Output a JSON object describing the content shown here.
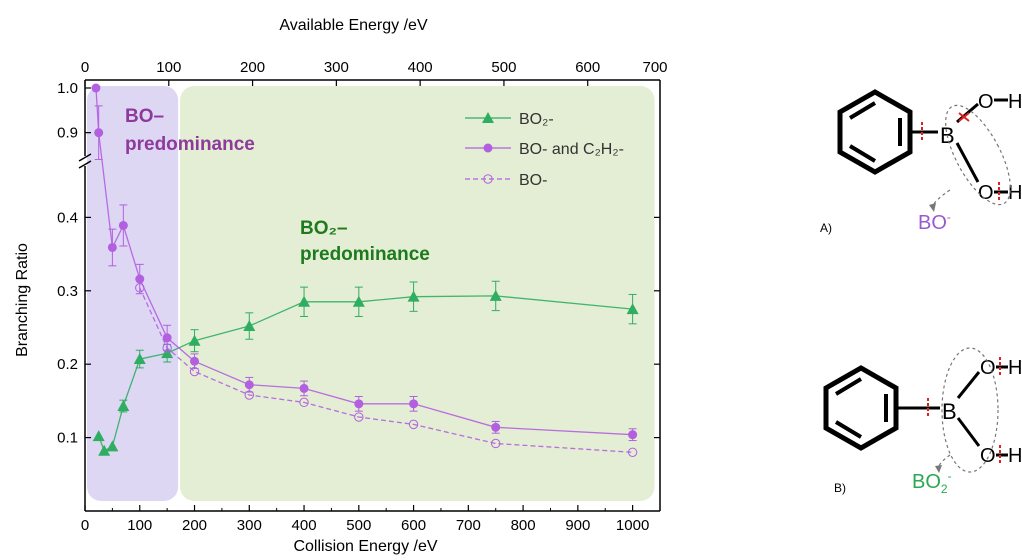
{
  "chart_data": {
    "type": "line",
    "xlabel": "Collision Energy /eV",
    "x2label": "Available Energy /eV",
    "ylabel": "Branching Ratio",
    "xlim": [
      0,
      1050
    ],
    "x_ticks": [
      0,
      100,
      200,
      300,
      400,
      500,
      600,
      700,
      800,
      900,
      1000
    ],
    "x2_ticks": [
      0,
      100,
      200,
      300,
      400,
      500,
      600,
      700
    ],
    "x2_positions_collision_energy": [
      0,
      153,
      306,
      459,
      612,
      765,
      918,
      1071
    ],
    "y_lower_lim": [
      0,
      0.47
    ],
    "y_upper_lim": [
      0.85,
      1.0
    ],
    "y_break": true,
    "y_ticks_lower": [
      0.1,
      0.2,
      0.3,
      0.4
    ],
    "y_ticks_upper": [
      0.9,
      1.0
    ],
    "grid": false,
    "legend_position": "top-right",
    "regions": [
      {
        "label_line1": "BO–",
        "label_line2": "predominance",
        "x_range": [
          0,
          170
        ],
        "color": "#ded7f4",
        "text_color": "#8e3a9c"
      },
      {
        "label_line1": "BO₂–",
        "label_line2": "predominance",
        "x_range": [
          170,
          1040
        ],
        "color": "#e4eed4",
        "text_color": "#1e7a1e"
      }
    ],
    "series": [
      {
        "name": "BO₂-",
        "marker": "triangle",
        "color": "#2fae62",
        "linestyle": "solid",
        "points": [
          {
            "x": 25,
            "y": 0.102,
            "err": 0
          },
          {
            "x": 35,
            "y": 0.082,
            "err": 0
          },
          {
            "x": 50,
            "y": 0.088,
            "err": 0
          },
          {
            "x": 70,
            "y": 0.143,
            "err": 0.008
          },
          {
            "x": 100,
            "y": 0.207,
            "err": 0.012
          },
          {
            "x": 150,
            "y": 0.215,
            "err": 0.012
          },
          {
            "x": 200,
            "y": 0.232,
            "err": 0.015
          },
          {
            "x": 300,
            "y": 0.252,
            "err": 0.018
          },
          {
            "x": 400,
            "y": 0.285,
            "err": 0.02
          },
          {
            "x": 500,
            "y": 0.285,
            "err": 0.02
          },
          {
            "x": 600,
            "y": 0.292,
            "err": 0.02
          },
          {
            "x": 750,
            "y": 0.293,
            "err": 0.02
          },
          {
            "x": 1000,
            "y": 0.275,
            "err": 0.02
          }
        ]
      },
      {
        "name": "BO- and C₂H₂-",
        "marker": "circle",
        "color": "#b25fe0",
        "linestyle": "solid",
        "points": [
          {
            "x": 20,
            "y": 1.0,
            "err": 0,
            "segment": "upper"
          },
          {
            "x": 25,
            "y": 0.9,
            "err": 0.06,
            "segment": "upper"
          },
          {
            "x": 50,
            "y": 0.359,
            "err": 0.025
          },
          {
            "x": 70,
            "y": 0.389,
            "err": 0.028
          },
          {
            "x": 100,
            "y": 0.316,
            "err": 0.02
          },
          {
            "x": 150,
            "y": 0.236,
            "err": 0.017
          },
          {
            "x": 200,
            "y": 0.204,
            "err": 0.01
          },
          {
            "x": 300,
            "y": 0.172,
            "err": 0.01
          },
          {
            "x": 400,
            "y": 0.167,
            "err": 0.01
          },
          {
            "x": 500,
            "y": 0.146,
            "err": 0.01
          },
          {
            "x": 600,
            "y": 0.146,
            "err": 0.01
          },
          {
            "x": 750,
            "y": 0.114,
            "err": 0.008
          },
          {
            "x": 1000,
            "y": 0.104,
            "err": 0.008
          }
        ]
      },
      {
        "name": "BO-",
        "marker": "open-circle",
        "color": "#b25fe0",
        "linestyle": "dashed",
        "points": [
          {
            "x": 100,
            "y": 0.304,
            "err": 0
          },
          {
            "x": 150,
            "y": 0.222,
            "err": 0
          },
          {
            "x": 200,
            "y": 0.19,
            "err": 0
          },
          {
            "x": 300,
            "y": 0.158,
            "err": 0
          },
          {
            "x": 400,
            "y": 0.148,
            "err": 0
          },
          {
            "x": 500,
            "y": 0.128,
            "err": 0
          },
          {
            "x": 600,
            "y": 0.118,
            "err": 0
          },
          {
            "x": 750,
            "y": 0.092,
            "err": 0
          },
          {
            "x": 1000,
            "y": 0.08,
            "err": 0
          }
        ]
      }
    ]
  },
  "schemes": [
    {
      "panel_label": "A)",
      "product_label": "BO-",
      "product_color": "#9b59d0"
    },
    {
      "panel_label": "B)",
      "product_label": "BO2-",
      "product_color": "#2aa84f"
    }
  ],
  "atoms": {
    "oxygen": "O",
    "hydrogen": "H",
    "boron": "B"
  }
}
